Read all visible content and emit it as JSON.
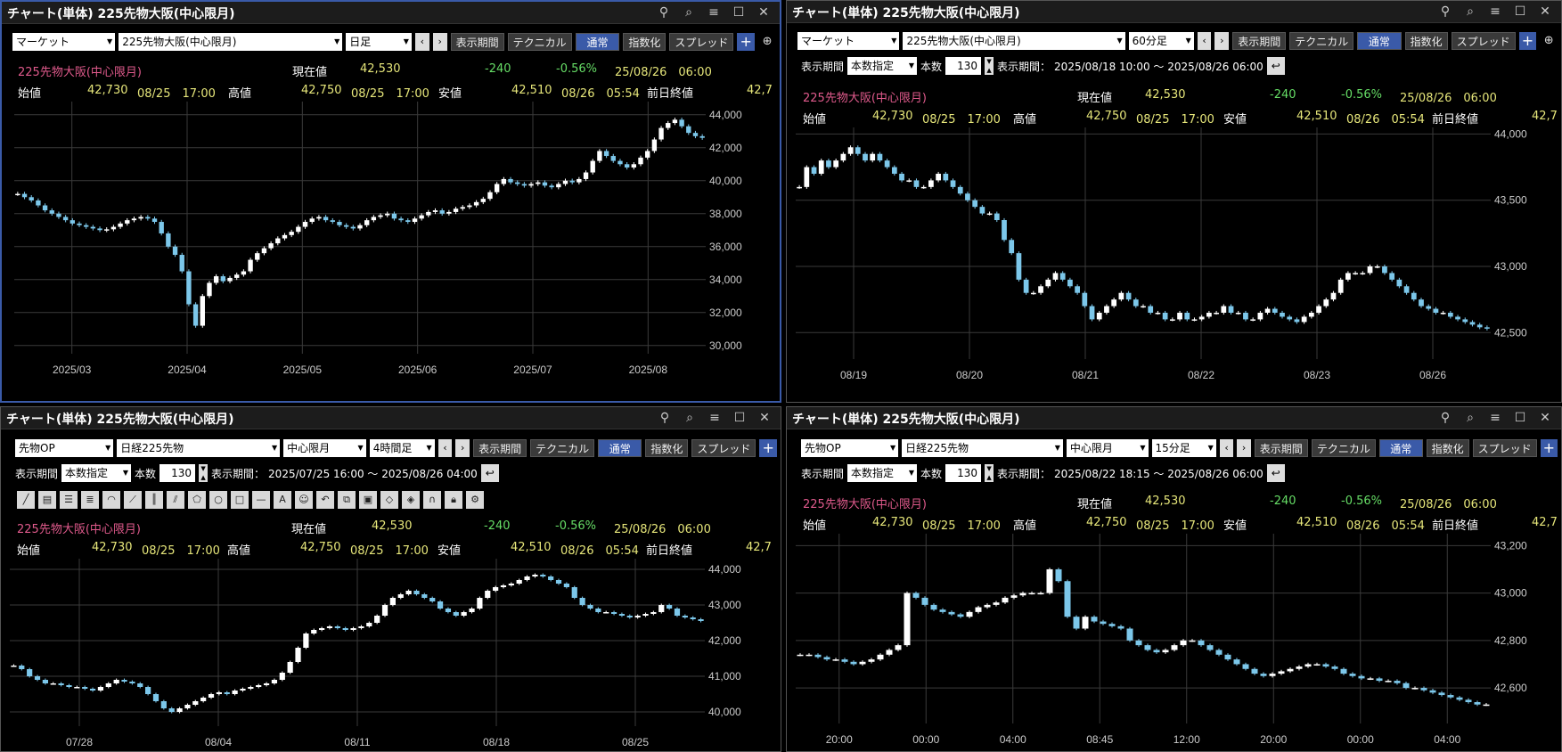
{
  "panel_title": "チャート(単体) 225先物大阪(中心限月)",
  "btn_period": "表示期間",
  "btn_tech": "テクニカル",
  "btn_normal": "通常",
  "btn_index": "指数化",
  "btn_spread": "スプレッド",
  "plus": "+",
  "lbl_period": "表示期間",
  "lbl_count_mode": "本数指定",
  "lbl_count": "本数",
  "count_value": "130",
  "lbl_range": "表示期間：",
  "quote": {
    "name": "225先物大阪(中心限月)",
    "cur_label": "現在値",
    "cur": "42,530",
    "chg": "-240",
    "pct": "-0.56%",
    "time": "25/08/26　06:00",
    "open_label": "始値",
    "open": "42,730",
    "open_time": "08/25　17:00",
    "high_label": "高値",
    "high": "42,750",
    "high_time": "08/25　17:00",
    "low_label": "安値",
    "low": "42,510",
    "low_time": "08/26　05:54",
    "prev_label": "前日終値",
    "prev": "42,7"
  },
  "p1": {
    "market": "マーケット",
    "instrument": "225先物大阪(中心限月)",
    "interval": "日足"
  },
  "p2": {
    "market": "マーケット",
    "instrument": "225先物大阪(中心限月)",
    "interval": "60分足",
    "range": "2025/08/18 10:00 ～ 2025/08/26 06:00"
  },
  "p3": {
    "market": "先物OP",
    "instrument": "日経225先物",
    "month": "中心限月",
    "interval": "4時間足",
    "range": "2025/07/25 16:00 ～ 2025/08/26 04:00"
  },
  "p4": {
    "market": "先物OP",
    "instrument": "日経225先物",
    "month": "中心限月",
    "interval": "15分足",
    "range": "2025/08/22 18:15 ～ 2025/08/26 06:00"
  },
  "chart_data": [
    {
      "type": "candlestick",
      "interval": "日足",
      "yticks": [
        "44,000",
        "42,000",
        "40,000",
        "38,000",
        "36,000",
        "34,000",
        "32,000",
        "30,000"
      ],
      "ylim": [
        29500,
        44800
      ],
      "xticks": [
        "2025/03",
        "2025/04",
        "2025/05",
        "2025/06",
        "2025/07",
        "2025/08"
      ],
      "close": [
        39200,
        39000,
        38800,
        38500,
        38200,
        38000,
        37800,
        37600,
        37400,
        37300,
        37200,
        37100,
        37000,
        37050,
        37200,
        37400,
        37600,
        37700,
        37800,
        37700,
        37500,
        36800,
        36000,
        35500,
        34500,
        32500,
        31200,
        33000,
        33800,
        34200,
        33900,
        34100,
        34300,
        34500,
        35200,
        35600,
        35900,
        36200,
        36500,
        36700,
        36900,
        37200,
        37500,
        37700,
        37800,
        37600,
        37500,
        37300,
        37200,
        37100,
        37300,
        37600,
        37800,
        37900,
        38000,
        37700,
        37600,
        37500,
        37700,
        37900,
        38100,
        38200,
        38000,
        38100,
        38300,
        38400,
        38500,
        38700,
        38900,
        39300,
        39800,
        40100,
        39900,
        39800,
        39700,
        39800,
        39900,
        39700,
        39600,
        39800,
        40000,
        39900,
        40100,
        40500,
        41200,
        41800,
        41500,
        41200,
        41000,
        40800,
        41000,
        41400,
        41800,
        42500,
        43200,
        43500,
        43700,
        43300,
        42900,
        42700,
        42600
      ],
      "note": "approximate closes read from chart"
    },
    {
      "type": "candlestick",
      "interval": "60分足",
      "yticks": [
        "44,000",
        "43,500",
        "43,000",
        "42,500"
      ],
      "ylim": [
        42300,
        44050
      ],
      "xticks": [
        "08/19",
        "08/20",
        "08/21",
        "08/22",
        "08/23",
        "08/26"
      ],
      "close": [
        43600,
        43750,
        43700,
        43800,
        43750,
        43800,
        43850,
        43900,
        43850,
        43800,
        43850,
        43800,
        43750,
        43700,
        43650,
        43650,
        43600,
        43600,
        43650,
        43700,
        43650,
        43600,
        43550,
        43500,
        43450,
        43400,
        43400,
        43350,
        43200,
        43100,
        42900,
        42800,
        42800,
        42850,
        42900,
        42950,
        42900,
        42850,
        42800,
        42700,
        42600,
        42650,
        42700,
        42750,
        42800,
        42750,
        42700,
        42700,
        42650,
        42650,
        42600,
        42600,
        42650,
        42600,
        42600,
        42620,
        42650,
        42650,
        42700,
        42650,
        42650,
        42600,
        42600,
        42650,
        42680,
        42650,
        42620,
        42600,
        42580,
        42620,
        42650,
        42700,
        42750,
        42800,
        42900,
        42950,
        42950,
        42950,
        43000,
        43000,
        42950,
        42900,
        42850,
        42800,
        42750,
        42700,
        42680,
        42650,
        42650,
        42620,
        42600,
        42580,
        42560,
        42540,
        42530
      ]
    },
    {
      "type": "candlestick",
      "interval": "4時間足",
      "yticks": [
        "44,000",
        "43,000",
        "42,000",
        "41,000",
        "40,000"
      ],
      "ylim": [
        39600,
        44300
      ],
      "xticks": [
        "07/28",
        "08/04",
        "08/11",
        "08/18",
        "08/25"
      ],
      "close": [
        41300,
        41200,
        41000,
        40900,
        40800,
        40800,
        40750,
        40700,
        40700,
        40650,
        40600,
        40700,
        40800,
        40900,
        40850,
        40800,
        40700,
        40500,
        40300,
        40100,
        40000,
        40100,
        40200,
        40300,
        40400,
        40500,
        40550,
        40500,
        40600,
        40650,
        40700,
        40750,
        40800,
        40900,
        41100,
        41400,
        41800,
        42200,
        42300,
        42350,
        42400,
        42350,
        42300,
        42350,
        42400,
        42500,
        42700,
        43000,
        43200,
        43300,
        43400,
        43300,
        43200,
        43100,
        42900,
        42800,
        42700,
        42800,
        42900,
        43200,
        43400,
        43500,
        43550,
        43600,
        43700,
        43800,
        43850,
        43800,
        43700,
        43600,
        43500,
        43200,
        43000,
        42900,
        42800,
        42800,
        42750,
        42700,
        42650,
        42700,
        42750,
        42800,
        43000,
        42900,
        42700,
        42650,
        42600,
        42550
      ]
    },
    {
      "type": "candlestick",
      "interval": "15分足",
      "yticks": [
        "43,200",
        "43,000",
        "42,800",
        "42,600"
      ],
      "ylim": [
        42450,
        43250
      ],
      "xticks": [
        "20:00",
        "00:00",
        "04:00",
        "08:45",
        "12:00",
        "20:00",
        "00:00",
        "04:00"
      ],
      "close": [
        42740,
        42740,
        42730,
        42720,
        42720,
        42710,
        42700,
        42710,
        42720,
        42740,
        42760,
        42780,
        43000,
        42980,
        42950,
        42930,
        42920,
        42910,
        42900,
        42920,
        42940,
        42950,
        42960,
        42980,
        42990,
        43000,
        43000,
        43000,
        43100,
        43050,
        42900,
        42850,
        42900,
        42880,
        42870,
        42860,
        42850,
        42800,
        42780,
        42760,
        42750,
        42760,
        42780,
        42800,
        42800,
        42780,
        42760,
        42740,
        42720,
        42700,
        42680,
        42660,
        42650,
        42660,
        42670,
        42680,
        42690,
        42700,
        42700,
        42690,
        42680,
        42660,
        42650,
        42640,
        42640,
        42630,
        42630,
        42620,
        42600,
        42600,
        42590,
        42580,
        42570,
        42560,
        42550,
        42540,
        42530,
        42530
      ]
    }
  ]
}
